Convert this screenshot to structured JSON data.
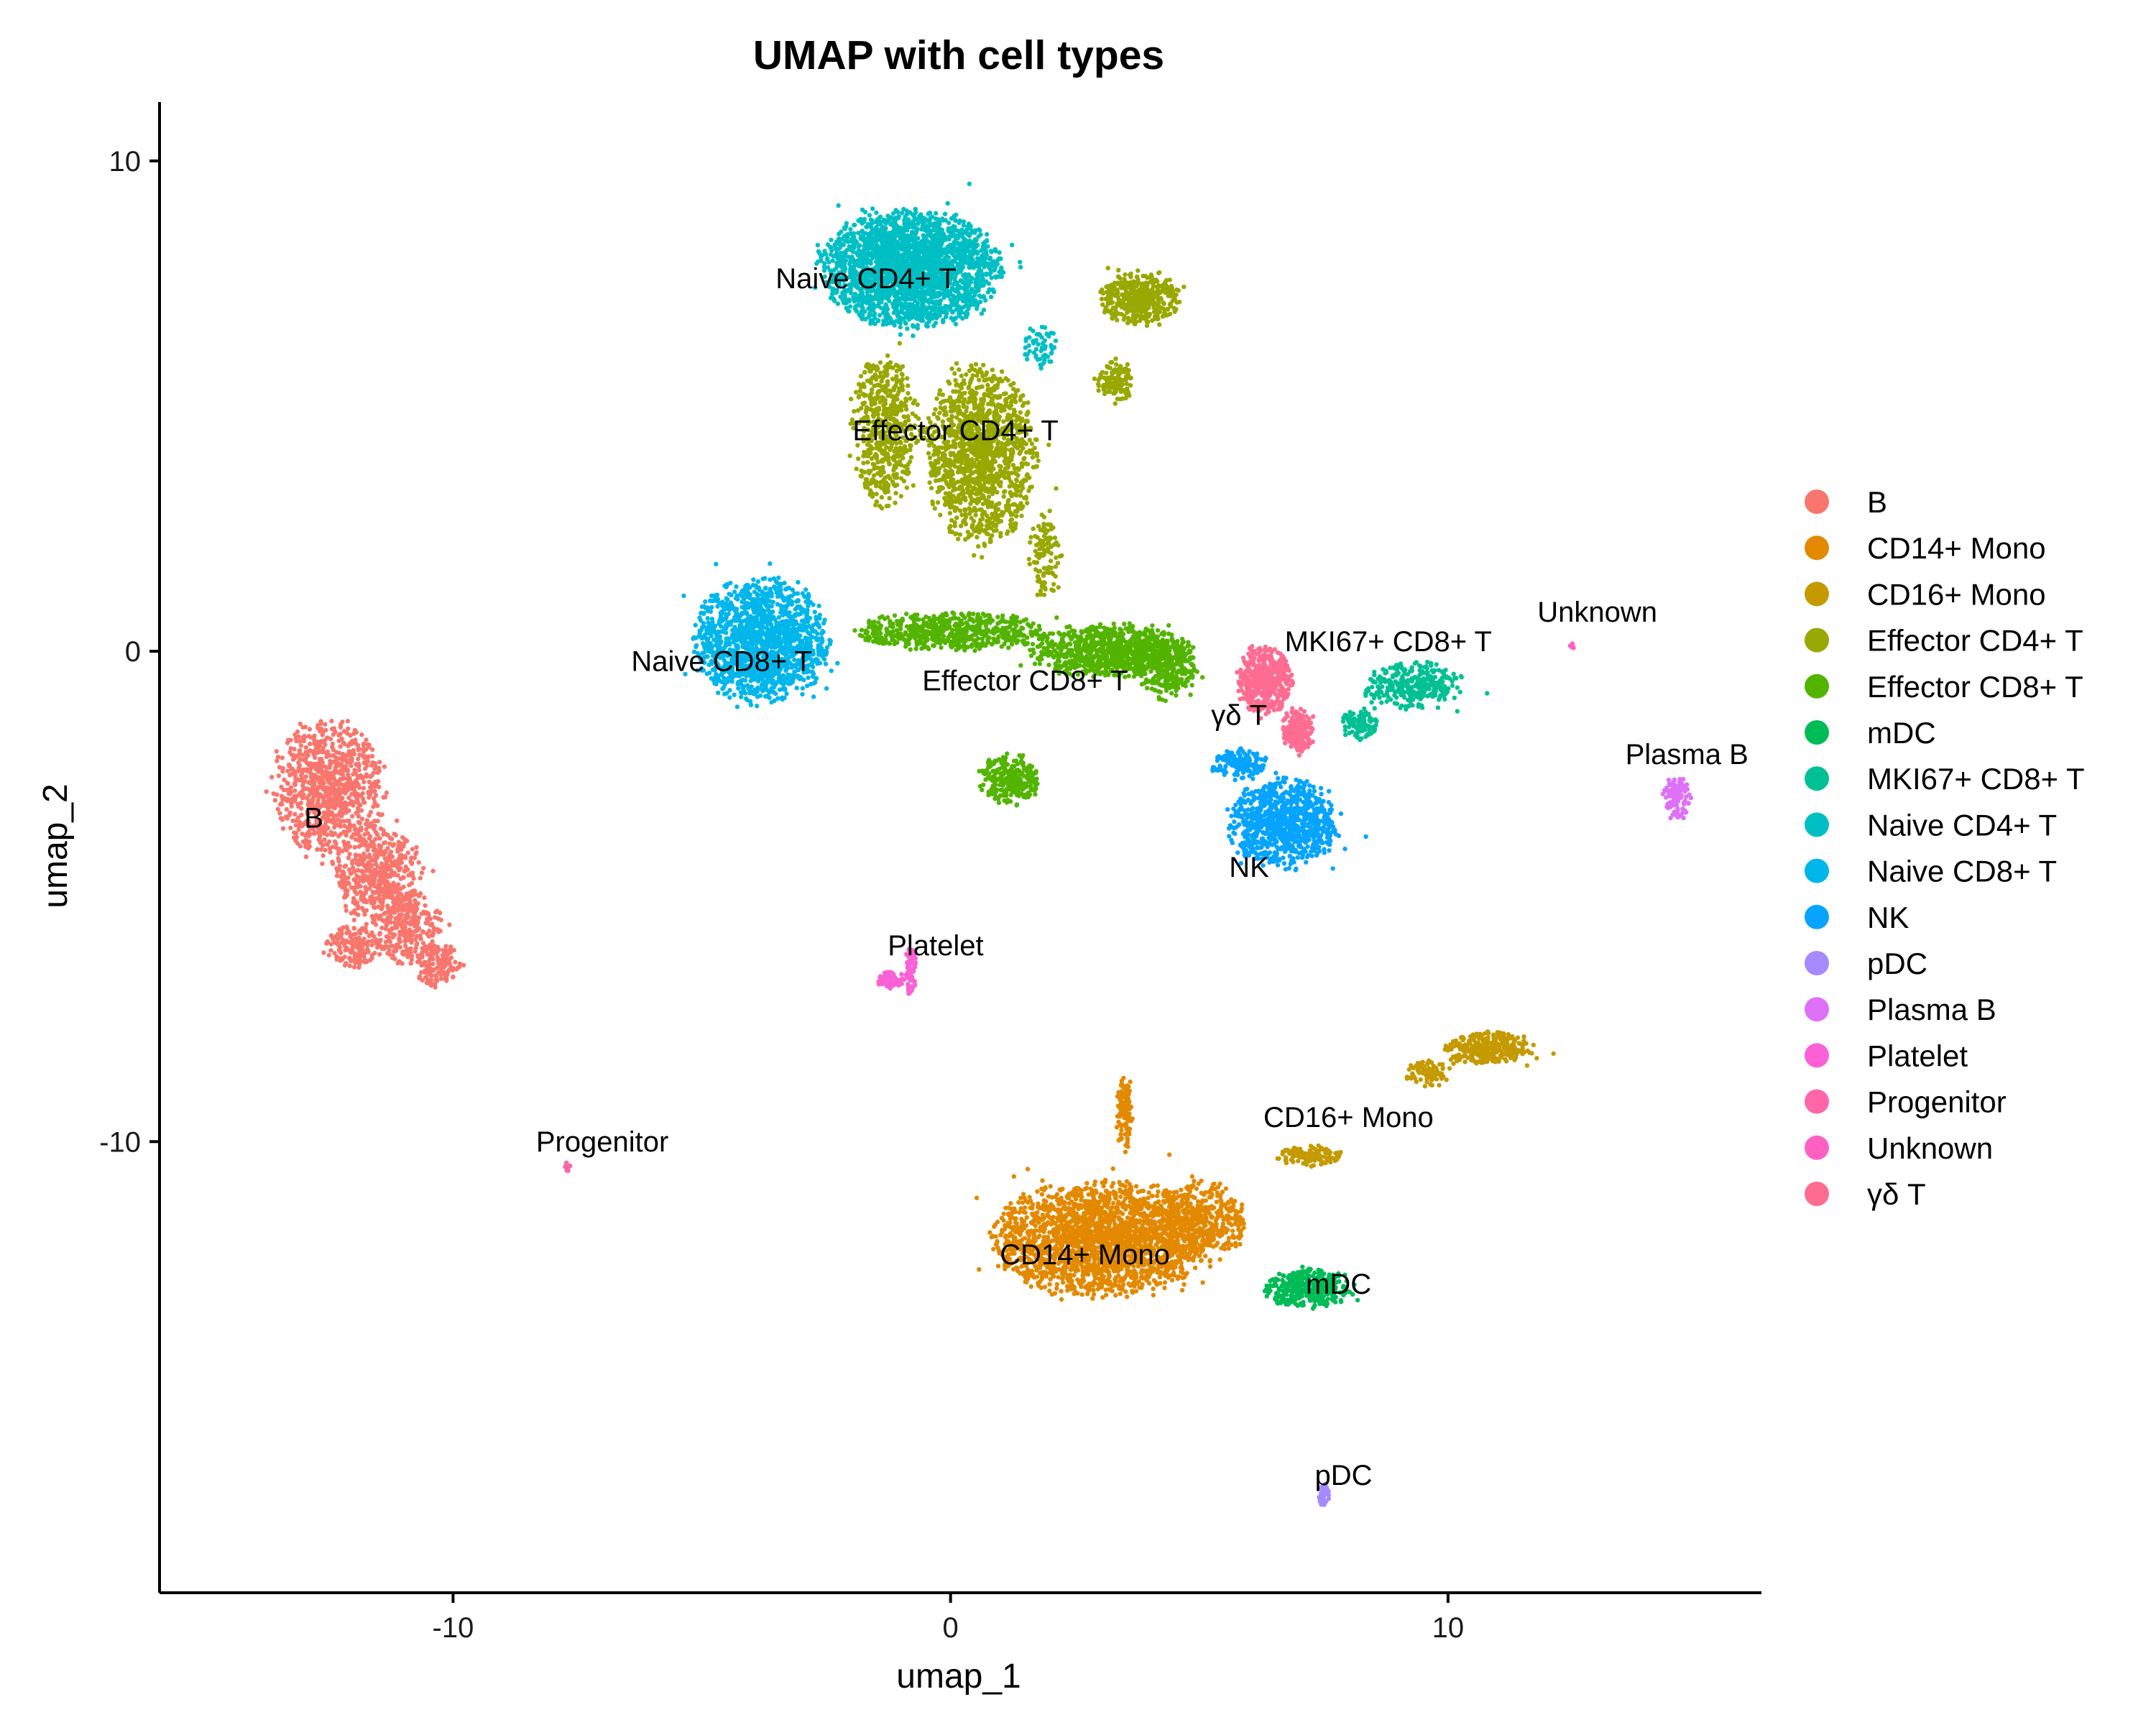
{
  "chart_data": {
    "type": "scatter",
    "title": "UMAP with cell types",
    "xlabel": "umap_1",
    "ylabel": "umap_2",
    "xlim": [
      -15.9,
      16.3
    ],
    "ylim": [
      -19.2,
      11.2
    ],
    "x_ticks": [
      -10,
      0,
      10
    ],
    "x_tick_labels": [
      "-10",
      "0",
      "10"
    ],
    "y_ticks": [
      10,
      0,
      -10
    ],
    "y_tick_labels": [
      "10",
      "0",
      "-10"
    ],
    "grid": false,
    "legend_position": "right",
    "series": [
      {
        "name": "B",
        "color": "#F8766D",
        "label": "B",
        "label_x": -12.8,
        "label_y": -3.6
      },
      {
        "name": "CD14+ Mono",
        "color": "#E38900",
        "label": "CD14+ Mono",
        "label_x": 2.7,
        "label_y": -12.5
      },
      {
        "name": "CD16+ Mono",
        "color": "#C49A00",
        "label": "CD16+ Mono",
        "label_x": 8.0,
        "label_y": -9.7
      },
      {
        "name": "Effector CD4+ T",
        "color": "#99A800",
        "label": "Effector CD4+ T",
        "label_x": 0.1,
        "label_y": 4.3
      },
      {
        "name": "Effector CD8+ T",
        "color": "#53B400",
        "label": "Effector CD8+ T",
        "label_x": 1.5,
        "label_y": -0.8
      },
      {
        "name": "mDC",
        "color": "#00BC56",
        "label": "mDC",
        "label_x": 7.8,
        "label_y": -13.1
      },
      {
        "name": "MKI67+ CD8+ T",
        "color": "#00C094",
        "label": "MKI67+ CD8+ T",
        "label_x": 8.8,
        "label_y": 0.0
      },
      {
        "name": "Naive CD4+ T",
        "color": "#00BFC4",
        "label": "Naive CD4+ T",
        "label_x": -1.7,
        "label_y": 7.4
      },
      {
        "name": "Naive CD8+ T",
        "color": "#00B6EB",
        "label": "Naive CD8+ T",
        "label_x": -4.6,
        "label_y": -0.4
      },
      {
        "name": "NK",
        "color": "#06A4FF",
        "label": "NK",
        "label_x": 6.0,
        "label_y": -4.6
      },
      {
        "name": "pDC",
        "color": "#A58AFF",
        "label": "pDC",
        "label_x": 7.9,
        "label_y": -17.0
      },
      {
        "name": "Plasma B",
        "color": "#DF70F8",
        "label": "Plasma B",
        "label_x": 14.8,
        "label_y": -2.3
      },
      {
        "name": "Platelet",
        "color": "#FB61D7",
        "label": "Platelet",
        "label_x": -0.3,
        "label_y": -6.2
      },
      {
        "name": "Progenitor",
        "color": "#FF66A8",
        "label": "Progenitor",
        "label_x": -7.0,
        "label_y": -10.2
      },
      {
        "name": "Unknown",
        "color": "#FF61C3",
        "label": "Unknown",
        "label_x": 13.0,
        "label_y": 0.6
      },
      {
        "name": "γδ T",
        "color": "#FF6C91",
        "label": "γδ T",
        "label_x": 5.8,
        "label_y": -1.5
      }
    ]
  }
}
